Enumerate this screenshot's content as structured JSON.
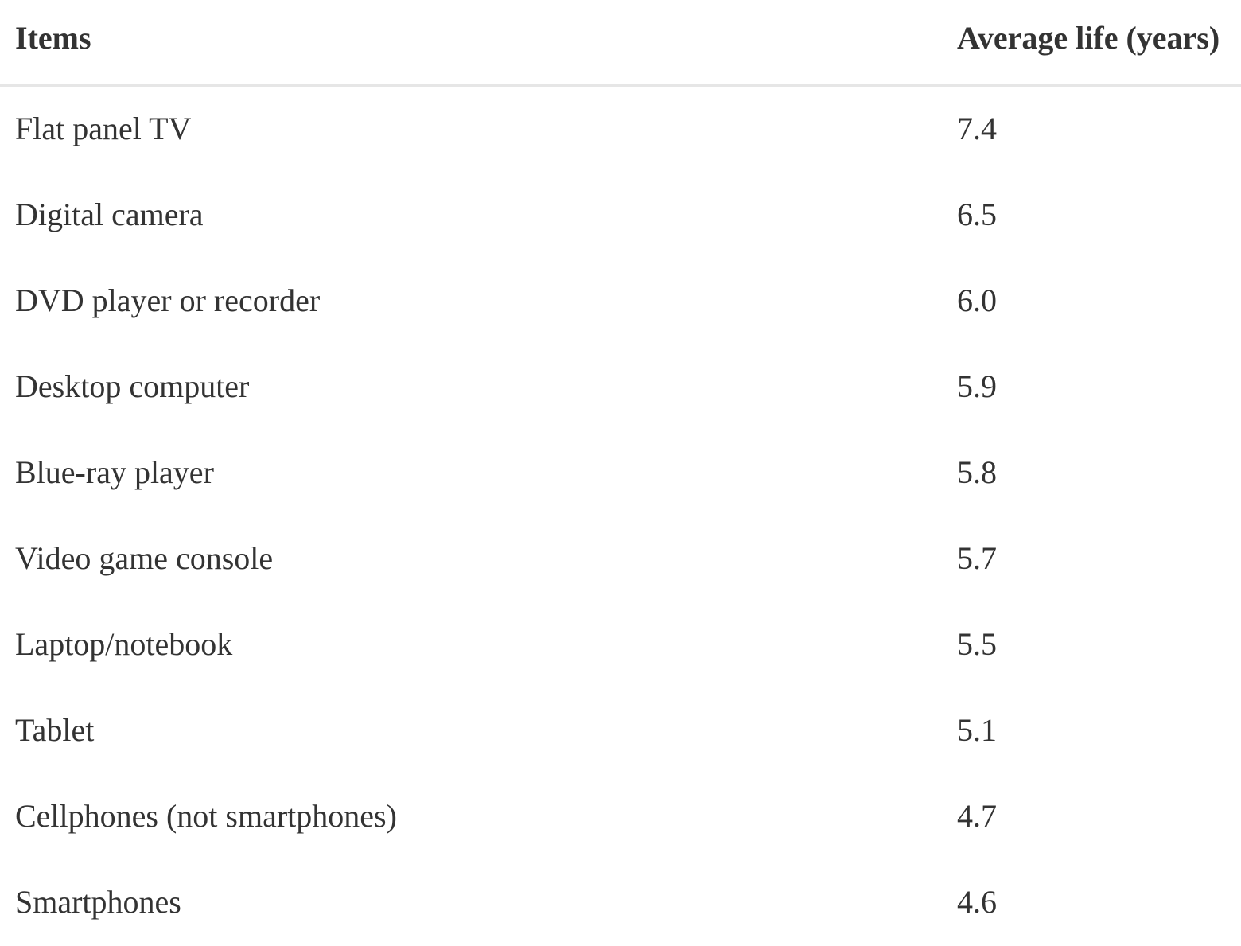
{
  "table": {
    "headers": {
      "item": "Items",
      "life": "Average life (years)"
    },
    "rows": [
      {
        "item": "Flat panel TV",
        "life": "7.4"
      },
      {
        "item": "Digital camera",
        "life": "6.5"
      },
      {
        "item": "DVD player or recorder",
        "life": "6.0"
      },
      {
        "item": "Desktop computer",
        "life": "5.9"
      },
      {
        "item": "Blue-ray player",
        "life": "5.8"
      },
      {
        "item": "Video game console",
        "life": "5.7"
      },
      {
        "item": "Laptop/notebook",
        "life": "5.5"
      },
      {
        "item": "Tablet",
        "life": "5.1"
      },
      {
        "item": "Cellphones (not smartphones)",
        "life": "4.7"
      },
      {
        "item": "Smartphones",
        "life": "4.6"
      }
    ]
  }
}
